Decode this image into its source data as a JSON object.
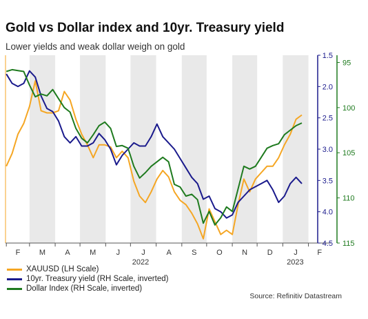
{
  "chart_data": {
    "type": "line",
    "title": "Gold vs Dollar index and 10yr. Treasury yield",
    "subtitle": "Lower yields and weak dollar weigh on gold",
    "source": "Source: Refinitiv Datastream",
    "x_months": [
      "F",
      "M",
      "A",
      "M",
      "J",
      "J",
      "A",
      "S",
      "O",
      "N",
      "D",
      "J",
      "F"
    ],
    "x_years": [
      "2022",
      "2023"
    ],
    "xlim": [
      "2022-01-31",
      "2023-02-28"
    ],
    "y_left": {
      "label": "XAUUSD",
      "lim": [
        1620,
        2060
      ]
    },
    "y_yield": {
      "ticks": [
        "1.5",
        "2.0",
        "2.5",
        "3.0",
        "3.5",
        "4.0",
        "4.5"
      ],
      "values": [
        1.5,
        2.0,
        2.5,
        3.0,
        3.5,
        4.0,
        4.5
      ],
      "lim": [
        1.5,
        4.5
      ],
      "inverted": true,
      "color": "#1a1a8c"
    },
    "y_dxy": {
      "ticks": [
        "95",
        "100",
        "105",
        "110",
        "115"
      ],
      "values": [
        95,
        100,
        105,
        110,
        115
      ],
      "lim": [
        94.2,
        115
      ],
      "inverted": true,
      "color": "#1e7a1e"
    },
    "legend_position": "bottom-left",
    "series": [
      {
        "name": "XAUUSD (LH Scale)",
        "axis": "left",
        "color": "#f5a623",
        "x": [
          "2022-02-01",
          "2022-02-08",
          "2022-02-15",
          "2022-02-22",
          "2022-03-01",
          "2022-03-08",
          "2022-03-15",
          "2022-03-22",
          "2022-03-29",
          "2022-04-05",
          "2022-04-12",
          "2022-04-19",
          "2022-04-26",
          "2022-05-03",
          "2022-05-10",
          "2022-05-17",
          "2022-05-24",
          "2022-05-31",
          "2022-06-07",
          "2022-06-14",
          "2022-06-21",
          "2022-06-28",
          "2022-07-05",
          "2022-07-12",
          "2022-07-19",
          "2022-07-26",
          "2022-08-02",
          "2022-08-09",
          "2022-08-16",
          "2022-08-23",
          "2022-08-30",
          "2022-09-06",
          "2022-09-13",
          "2022-09-20",
          "2022-09-27",
          "2022-10-04",
          "2022-10-11",
          "2022-10-18",
          "2022-10-25",
          "2022-11-01",
          "2022-11-08",
          "2022-11-15",
          "2022-11-22",
          "2022-11-29",
          "2022-12-06",
          "2022-12-13",
          "2022-12-20",
          "2022-12-27",
          "2023-01-03",
          "2023-01-10",
          "2023-01-17",
          "2023-01-24"
        ],
        "y": [
          1800,
          1830,
          1875,
          1900,
          1940,
          2000,
          1930,
          1925,
          1925,
          1930,
          1975,
          1955,
          1910,
          1875,
          1850,
          1820,
          1850,
          1850,
          1845,
          1820,
          1835,
          1820,
          1765,
          1730,
          1715,
          1740,
          1770,
          1790,
          1775,
          1740,
          1720,
          1710,
          1690,
          1665,
          1630,
          1700,
          1670,
          1640,
          1650,
          1640,
          1710,
          1770,
          1740,
          1770,
          1785,
          1800,
          1800,
          1820,
          1850,
          1875,
          1910,
          1920
        ]
      },
      {
        "name": "10yr. Treasury yield (RH Scale, inverted)",
        "axis": "yield",
        "color": "#1a1a8c",
        "x": [
          "2022-02-01",
          "2022-02-08",
          "2022-02-15",
          "2022-02-22",
          "2022-03-01",
          "2022-03-08",
          "2022-03-15",
          "2022-03-22",
          "2022-03-29",
          "2022-04-05",
          "2022-04-12",
          "2022-04-19",
          "2022-04-26",
          "2022-05-03",
          "2022-05-10",
          "2022-05-17",
          "2022-05-24",
          "2022-05-31",
          "2022-06-07",
          "2022-06-14",
          "2022-06-21",
          "2022-06-28",
          "2022-07-05",
          "2022-07-12",
          "2022-07-19",
          "2022-07-26",
          "2022-08-02",
          "2022-08-09",
          "2022-08-16",
          "2022-08-23",
          "2022-08-30",
          "2022-09-06",
          "2022-09-13",
          "2022-09-20",
          "2022-09-27",
          "2022-10-04",
          "2022-10-11",
          "2022-10-18",
          "2022-10-25",
          "2022-11-01",
          "2022-11-08",
          "2022-11-15",
          "2022-11-22",
          "2022-11-29",
          "2022-12-06",
          "2022-12-13",
          "2022-12-20",
          "2022-12-27",
          "2023-01-03",
          "2023-01-10",
          "2023-01-17",
          "2023-01-24"
        ],
        "y": [
          1.8,
          1.95,
          2.0,
          1.95,
          1.75,
          1.85,
          2.15,
          2.35,
          2.4,
          2.55,
          2.8,
          2.9,
          2.8,
          2.95,
          2.95,
          2.9,
          2.75,
          2.85,
          3.0,
          3.25,
          3.1,
          3.0,
          2.9,
          2.95,
          2.95,
          2.8,
          2.6,
          2.8,
          2.9,
          3.0,
          3.15,
          3.3,
          3.45,
          3.55,
          3.8,
          3.75,
          3.95,
          4.0,
          4.1,
          4.05,
          3.85,
          3.75,
          3.65,
          3.6,
          3.55,
          3.5,
          3.65,
          3.85,
          3.75,
          3.55,
          3.45,
          3.55
        ]
      },
      {
        "name": "Dollar Index (RH Scale, inverted)",
        "axis": "dxy",
        "color": "#1e7a1e",
        "x": [
          "2022-02-01",
          "2022-02-08",
          "2022-02-15",
          "2022-02-22",
          "2022-03-01",
          "2022-03-08",
          "2022-03-15",
          "2022-03-22",
          "2022-03-29",
          "2022-04-05",
          "2022-04-12",
          "2022-04-19",
          "2022-04-26",
          "2022-05-03",
          "2022-05-10",
          "2022-05-17",
          "2022-05-24",
          "2022-05-31",
          "2022-06-07",
          "2022-06-14",
          "2022-06-21",
          "2022-06-28",
          "2022-07-05",
          "2022-07-12",
          "2022-07-19",
          "2022-07-26",
          "2022-08-02",
          "2022-08-09",
          "2022-08-16",
          "2022-08-23",
          "2022-08-30",
          "2022-09-06",
          "2022-09-13",
          "2022-09-20",
          "2022-09-27",
          "2022-10-04",
          "2022-10-11",
          "2022-10-18",
          "2022-10-25",
          "2022-11-01",
          "2022-11-08",
          "2022-11-15",
          "2022-11-22",
          "2022-11-29",
          "2022-12-06",
          "2022-12-13",
          "2022-12-20",
          "2022-12-27",
          "2023-01-03",
          "2023-01-10",
          "2023-01-17",
          "2023-01-24"
        ],
        "y": [
          96.0,
          95.8,
          95.9,
          96.0,
          97.5,
          98.8,
          98.5,
          98.7,
          98.0,
          99.0,
          100.0,
          100.5,
          102.3,
          103.4,
          103.9,
          103.0,
          102.0,
          101.6,
          102.3,
          104.3,
          104.2,
          104.5,
          106.5,
          107.8,
          107.2,
          106.5,
          106.0,
          105.5,
          106.0,
          108.5,
          108.8,
          109.8,
          109.6,
          110.2,
          112.8,
          111.5,
          113.0,
          112.2,
          111.0,
          111.5,
          109.0,
          106.5,
          106.8,
          106.5,
          105.5,
          104.5,
          104.2,
          104.0,
          103.0,
          102.5,
          102.0,
          101.7
        ]
      }
    ]
  }
}
